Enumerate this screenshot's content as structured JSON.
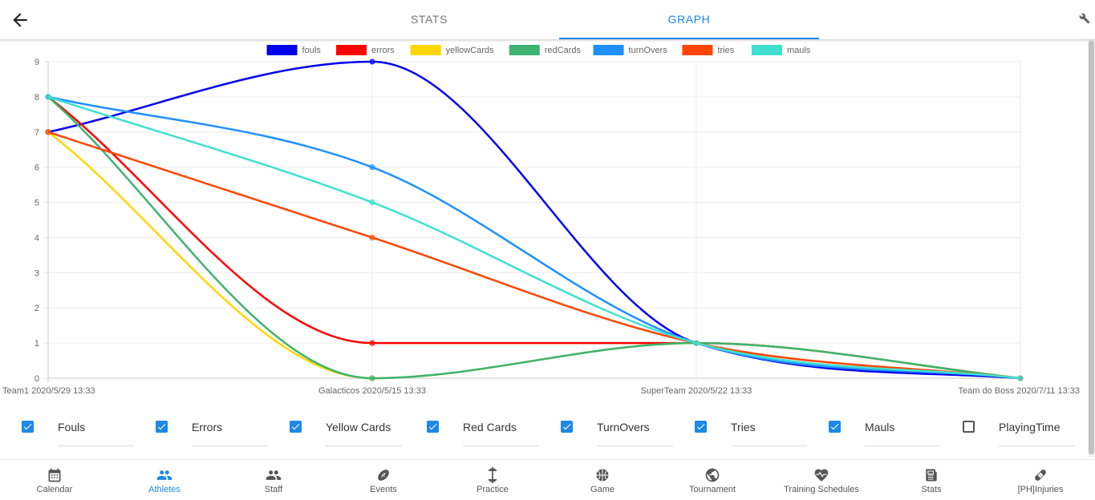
{
  "header": {
    "tabs": [
      {
        "label": "STATS",
        "active": false
      },
      {
        "label": "GRAPH",
        "active": true
      }
    ]
  },
  "chart_data": {
    "type": "line",
    "categories": [
      "Team1 2020/5/29 13:33",
      "Galacticos 2020/5/15 13:33",
      "SuperTeam 2020/5/22 13:33",
      "Team do Boss 2020/7/11 13:33"
    ],
    "ylim": [
      0,
      9
    ],
    "yticks": [
      "0",
      "1",
      "2",
      "3",
      "4",
      "5",
      "6",
      "7",
      "8",
      "9"
    ],
    "grid": true,
    "legend_position": "top",
    "series": [
      {
        "name": "fouls",
        "color": "#0000ee",
        "values": [
          7,
          9,
          1,
          0
        ]
      },
      {
        "name": "errors",
        "color": "#ff0000",
        "values": [
          8,
          1,
          1,
          0
        ]
      },
      {
        "name": "yellowCards",
        "color": "#ffd700",
        "values": [
          7,
          0,
          1,
          0
        ]
      },
      {
        "name": "redCards",
        "color": "#3cb371",
        "values": [
          8,
          0,
          1,
          0
        ]
      },
      {
        "name": "turnOvers",
        "color": "#1e90ff",
        "values": [
          8,
          6,
          1,
          0
        ]
      },
      {
        "name": "tries",
        "color": "#ff4500",
        "values": [
          7,
          4,
          1,
          0
        ]
      },
      {
        "name": "mauls",
        "color": "#40e0d0",
        "values": [
          8,
          5,
          1,
          0
        ]
      }
    ]
  },
  "filters": [
    {
      "label": "Fouls",
      "checked": true
    },
    {
      "label": "Errors",
      "checked": true
    },
    {
      "label": "Yellow Cards",
      "checked": true
    },
    {
      "label": "Red Cards",
      "checked": true
    },
    {
      "label": "TurnOvers",
      "checked": true
    },
    {
      "label": "Tries",
      "checked": true
    },
    {
      "label": "Mauls",
      "checked": true
    },
    {
      "label": "PlayingTime",
      "checked": false
    }
  ],
  "bottom_nav": [
    {
      "label": "Calendar",
      "icon": "calendar-icon",
      "active": false
    },
    {
      "label": "Athletes",
      "icon": "people-icon",
      "active": true
    },
    {
      "label": "Staff",
      "icon": "staff-icon",
      "active": false
    },
    {
      "label": "Events",
      "icon": "football-icon",
      "active": false
    },
    {
      "label": "Practice",
      "icon": "dumbbell-icon",
      "active": false
    },
    {
      "label": "Game",
      "icon": "ball-icon",
      "active": false
    },
    {
      "label": "Tournament",
      "icon": "globe-icon",
      "active": false
    },
    {
      "label": "Training Schedules",
      "icon": "heart-pulse-icon",
      "active": false
    },
    {
      "label": "Stats",
      "icon": "newspaper-icon",
      "active": false
    },
    {
      "label": "[PH]Injuries",
      "icon": "bandage-icon",
      "active": false
    }
  ],
  "colors": {
    "accent": "#1e88e5",
    "nav_inactive": "#555555"
  }
}
